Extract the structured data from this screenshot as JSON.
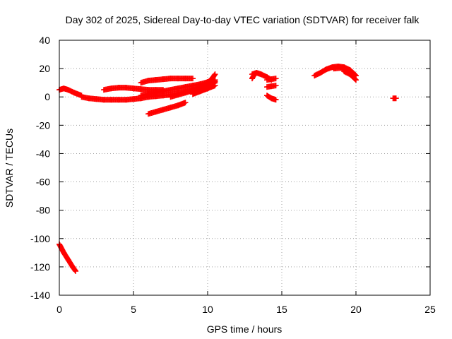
{
  "chart_data": {
    "type": "scatter",
    "title": "Day 302 of 2025, Sidereal Day-to-day VTEC variation (SDTVAR) for receiver falk",
    "xlabel": "GPS time / hours",
    "ylabel": "SDTVAR / TECUs",
    "xlim": [
      0,
      25
    ],
    "ylim": [
      -140,
      40
    ],
    "xticks": [
      0,
      5,
      10,
      15,
      20,
      25
    ],
    "yticks": [
      40,
      20,
      0,
      -20,
      -40,
      -60,
      -80,
      -100,
      -120,
      -140
    ],
    "grid": true,
    "marker": "plus",
    "color": "#ff0000",
    "segments": [
      {
        "x": [
          0.0,
          0.3,
          0.6,
          1.0,
          1.5
        ],
        "y": [
          5,
          6,
          5,
          3,
          1
        ]
      },
      {
        "x": [
          1.5,
          2.0,
          2.5,
          3.0,
          3.5,
          4.0,
          4.5,
          5.0,
          5.5,
          6.0,
          6.5,
          7.0,
          7.5,
          8.0,
          8.5,
          9.0,
          9.5,
          10.0,
          10.5
        ],
        "y": [
          0,
          -1,
          -1.5,
          -2,
          -2,
          -2,
          -2,
          -1.5,
          -1,
          0,
          0.5,
          1,
          1.5,
          2.5,
          3.5,
          5,
          6.5,
          8.5,
          11
        ]
      },
      {
        "x": [
          3.0,
          3.5,
          4.0,
          4.5,
          5.0,
          5.5,
          6.0,
          6.5,
          7.0
        ],
        "y": [
          5,
          6,
          6.5,
          6.5,
          6,
          5.5,
          5,
          5,
          5
        ]
      },
      {
        "x": [
          5.5,
          6.0,
          6.5,
          7.0,
          7.5,
          8.0,
          8.5,
          9.0
        ],
        "y": [
          10,
          11.5,
          12,
          12.5,
          13,
          13,
          13,
          13
        ]
      },
      {
        "x": [
          5.5,
          6.0,
          6.5,
          7.0,
          7.5,
          8.0,
          8.5,
          9.0,
          9.5,
          10.0,
          10.5
        ],
        "y": [
          1,
          2,
          3,
          4,
          5,
          6,
          7,
          8,
          9,
          10.5,
          12
        ]
      },
      {
        "x": [
          7.5,
          8.0,
          8.5,
          9.0,
          9.5,
          10.0,
          10.5
        ],
        "y": [
          0,
          1.5,
          3,
          4.5,
          6,
          8,
          10
        ]
      },
      {
        "x": [
          9.0,
          9.5,
          10.0,
          10.5
        ],
        "y": [
          2,
          4,
          6,
          8
        ]
      },
      {
        "x": [
          6.0,
          6.5,
          7.0,
          7.5,
          8.0,
          8.5
        ],
        "y": [
          -12,
          -10.5,
          -9,
          -7.5,
          -6,
          -4
        ]
      },
      {
        "x": [
          10.0,
          10.3,
          10.5
        ],
        "y": [
          10,
          13,
          16
        ]
      },
      {
        "x": [
          13.0,
          13.3,
          13.6,
          14.0,
          14.3
        ],
        "y": [
          16,
          17,
          16,
          14,
          12
        ]
      },
      {
        "x": [
          13.0,
          13.1
        ],
        "y": [
          13,
          15
        ]
      },
      {
        "x": [
          14.0,
          14.3,
          14.6
        ],
        "y": [
          7,
          7.5,
          8
        ]
      },
      {
        "x": [
          14.0,
          14.3,
          14.6
        ],
        "y": [
          12,
          12.5,
          13
        ]
      },
      {
        "x": [
          14.0,
          14.3,
          14.6
        ],
        "y": [
          1,
          -1,
          -2
        ]
      },
      {
        "x": [
          17.2,
          17.6,
          18.0,
          18.4,
          18.8,
          19.2,
          19.6,
          20.0
        ],
        "y": [
          15,
          17,
          19.5,
          21,
          21.5,
          21,
          19,
          15
        ]
      },
      {
        "x": [
          18.5,
          19.0,
          19.5,
          20.0
        ],
        "y": [
          20,
          20.5,
          19,
          15
        ]
      },
      {
        "x": [
          19.2,
          19.6,
          20.0
        ],
        "y": [
          18,
          16,
          12
        ]
      },
      {
        "x": [
          22.5,
          22.7
        ],
        "y": [
          -1,
          -1
        ]
      },
      {
        "x": [
          0.0,
          0.3,
          0.6,
          0.9,
          1.1
        ],
        "y": [
          -104,
          -110,
          -115,
          -120,
          -123
        ]
      }
    ]
  }
}
